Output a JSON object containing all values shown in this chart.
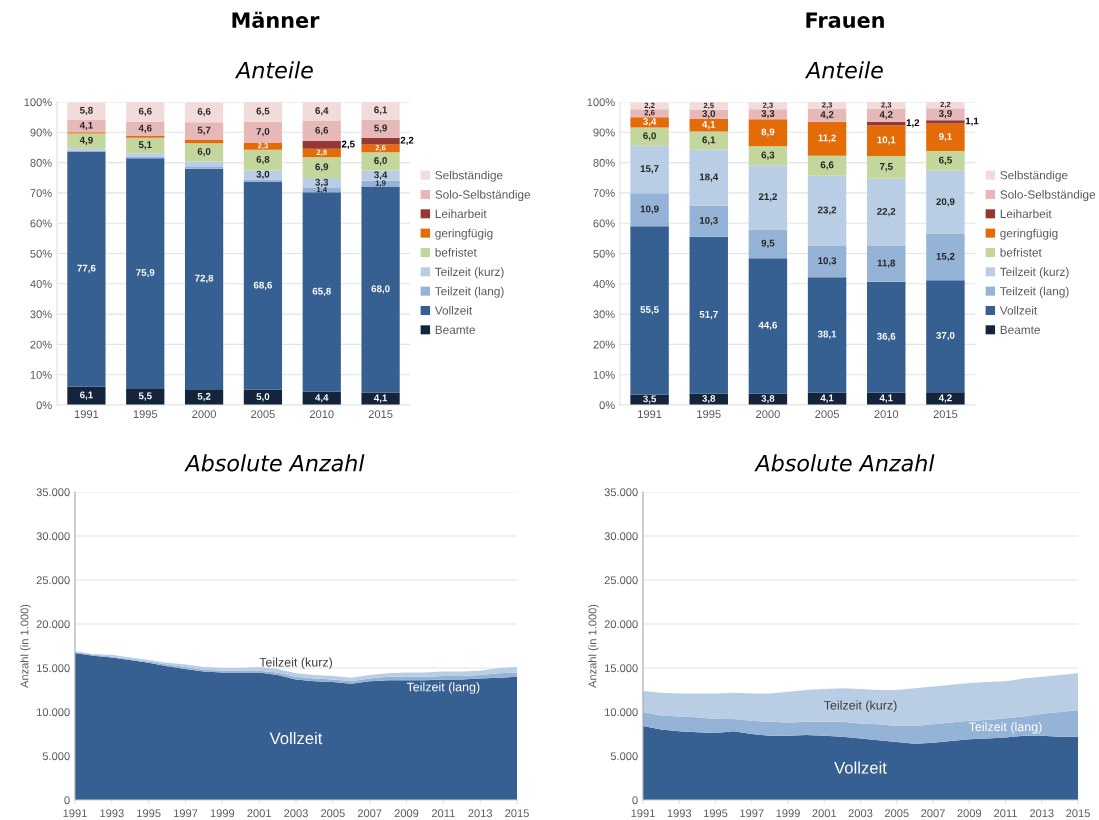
{
  "chart_data": [
    {
      "type": "bar",
      "title": "Männer",
      "subtitle": "Anteile",
      "categories": [
        "1991",
        "1995",
        "2000",
        "2005",
        "2010",
        "2015"
      ],
      "stacked": true,
      "ylim": [
        0,
        100
      ],
      "yticks": [
        {
          "value": 0,
          "label": "0%"
        },
        {
          "value": 10,
          "label": "10%"
        },
        {
          "value": 20,
          "label": "20%"
        },
        {
          "value": 30,
          "label": "30%"
        },
        {
          "value": 40,
          "label": "40%"
        },
        {
          "value": 50,
          "label": "50%"
        },
        {
          "value": 60,
          "label": "60%"
        },
        {
          "value": 70,
          "label": "70%"
        },
        {
          "value": 80,
          "label": "80%"
        },
        {
          "value": 90,
          "label": "90%"
        },
        {
          "value": 100,
          "label": "100%"
        }
      ],
      "grid": "y",
      "legend": "right",
      "series": [
        {
          "name": "Beamte",
          "color": "#14243c",
          "values": [
            6.1,
            5.5,
            5.2,
            5.0,
            4.4,
            4.1
          ],
          "value_labels": [
            "6,1",
            "5,5",
            "5,2",
            "5,0",
            "4,4",
            "4,1"
          ]
        },
        {
          "name": "Vollzeit",
          "color": "#376092",
          "values": [
            77.6,
            75.9,
            72.8,
            68.6,
            65.8,
            68.0
          ],
          "value_labels": [
            "77,6",
            "75,9",
            "72,8",
            "68,6",
            "65,8",
            "68,0"
          ]
        },
        {
          "name": "Teilzeit (lang)",
          "color": "#95b3d7",
          "values": [
            0.3,
            0.5,
            0.8,
            0.8,
            1.4,
            1.9
          ],
          "value_labels": [
            null,
            null,
            null,
            null,
            "1,4",
            "1,9"
          ]
        },
        {
          "name": "Teilzeit (kurz)",
          "color": "#b9cde5",
          "values": [
            0.7,
            1.2,
            1.6,
            3.0,
            3.3,
            3.4
          ],
          "value_labels": [
            null,
            null,
            null,
            "3,0",
            "3,3",
            "3,4"
          ]
        },
        {
          "name": "befristet",
          "color": "#c3d69b",
          "values": [
            4.9,
            5.1,
            6.0,
            6.8,
            6.9,
            6.0
          ],
          "value_labels": [
            "4,9",
            "5,1",
            "6,0",
            "6,8",
            "6,9",
            "6,0"
          ]
        },
        {
          "name": "geringfügig",
          "color": "#e36c09",
          "values": [
            0.4,
            0.6,
            1.2,
            2.3,
            2.8,
            2.6
          ],
          "value_labels": [
            null,
            null,
            null,
            "2,3",
            "2,8",
            "2,6"
          ]
        },
        {
          "name": "Leiharbeit",
          "color": "#953735",
          "values": [
            null,
            null,
            null,
            null,
            2.5,
            2.2
          ],
          "value_labels": [
            null,
            null,
            null,
            null,
            "2,5",
            "2,2"
          ]
        },
        {
          "name": "Solo-Selbständige",
          "color": "#e6b9b8",
          "values": [
            4.1,
            4.6,
            5.7,
            7.0,
            6.6,
            5.9
          ],
          "value_labels": [
            "4,1",
            "4,6",
            "5,7",
            "7,0",
            "6,6",
            "5,9"
          ]
        },
        {
          "name": "Selbständige",
          "color": "#f2dcdb",
          "values": [
            5.8,
            6.6,
            6.6,
            6.5,
            6.4,
            6.1
          ],
          "value_labels": [
            "5,8",
            "6,6",
            "6,6",
            "6,5",
            "6,4",
            "6,1"
          ]
        }
      ]
    },
    {
      "type": "bar",
      "title": "Frauen",
      "subtitle": "Anteile",
      "categories": [
        "1991",
        "1995",
        "2000",
        "2005",
        "2010",
        "2015"
      ],
      "stacked": true,
      "ylim": [
        0,
        100
      ],
      "yticks": [
        {
          "value": 0,
          "label": "0%"
        },
        {
          "value": 10,
          "label": "10%"
        },
        {
          "value": 20,
          "label": "20%"
        },
        {
          "value": 30,
          "label": "30%"
        },
        {
          "value": 40,
          "label": "40%"
        },
        {
          "value": 50,
          "label": "50%"
        },
        {
          "value": 60,
          "label": "60%"
        },
        {
          "value": 70,
          "label": "70%"
        },
        {
          "value": 80,
          "label": "80%"
        },
        {
          "value": 90,
          "label": "90%"
        },
        {
          "value": 100,
          "label": "100%"
        }
      ],
      "grid": "y",
      "legend": "right",
      "series": [
        {
          "name": "Beamte",
          "color": "#14243c",
          "values": [
            3.5,
            3.8,
            3.8,
            4.1,
            4.1,
            4.2
          ],
          "value_labels": [
            "3,5",
            "3,8",
            "3,8",
            "4,1",
            "4,1",
            "4,2"
          ]
        },
        {
          "name": "Vollzeit",
          "color": "#376092",
          "values": [
            55.5,
            51.7,
            44.6,
            38.1,
            36.6,
            37.0
          ],
          "value_labels": [
            "55,5",
            "51,7",
            "44,6",
            "38,1",
            "36,6",
            "37,0"
          ]
        },
        {
          "name": "Teilzeit (lang)",
          "color": "#95b3d7",
          "values": [
            10.9,
            10.3,
            9.5,
            10.3,
            11.8,
            15.2
          ],
          "value_labels": [
            "10,9",
            "10,3",
            "9,5",
            "10,3",
            "11,8",
            "15,2"
          ]
        },
        {
          "name": "Teilzeit (kurz)",
          "color": "#b9cde5",
          "values": [
            15.7,
            18.4,
            21.2,
            23.2,
            22.2,
            20.9
          ],
          "value_labels": [
            "15,7",
            "18,4",
            "21,2",
            "23,2",
            "22,2",
            "20,9"
          ]
        },
        {
          "name": "befristet",
          "color": "#c3d69b",
          "values": [
            6.0,
            6.1,
            6.3,
            6.6,
            7.5,
            6.5
          ],
          "value_labels": [
            "6,0",
            "6,1",
            "6,3",
            "6,6",
            "7,5",
            "6,5"
          ]
        },
        {
          "name": "geringfügig",
          "color": "#e36c09",
          "values": [
            3.4,
            4.1,
            8.9,
            11.2,
            10.1,
            9.1
          ],
          "value_labels": [
            "3,4",
            "4,1",
            "8,9",
            "11,2",
            "10,1",
            "9,1"
          ]
        },
        {
          "name": "Leiharbeit",
          "color": "#953735",
          "values": [
            null,
            null,
            null,
            null,
            1.2,
            1.1
          ],
          "value_labels": [
            null,
            null,
            null,
            null,
            "1,2",
            "1,1"
          ]
        },
        {
          "name": "Solo-Selbständige",
          "color": "#e6b9b8",
          "values": [
            2.6,
            3.0,
            3.3,
            4.2,
            4.2,
            3.9
          ],
          "value_labels": [
            "2,6",
            "3,0",
            "3,3",
            "4,2",
            "4,2",
            "3,9"
          ]
        },
        {
          "name": "Selbständige",
          "color": "#f2dcdb",
          "values": [
            2.2,
            2.5,
            2.3,
            2.3,
            2.3,
            2.2
          ],
          "value_labels": [
            "2,2",
            "2,5",
            "2,3",
            "2,3",
            "2,3",
            "2,2"
          ]
        }
      ]
    },
    {
      "type": "area",
      "title": "Absolute Anzahl",
      "ylabel": "Anzahl (in 1.000)",
      "stacked": true,
      "grid": "y",
      "x": [
        1991,
        1992,
        1993,
        1994,
        1995,
        1996,
        1997,
        1998,
        1999,
        2000,
        2001,
        2002,
        2003,
        2004,
        2005,
        2006,
        2007,
        2008,
        2009,
        2010,
        2011,
        2012,
        2013,
        2014,
        2015
      ],
      "xlim": [
        1991,
        2015
      ],
      "xticks": [
        1991,
        1993,
        1995,
        1997,
        1999,
        2001,
        2003,
        2005,
        2007,
        2009,
        2011,
        2013,
        2015
      ],
      "ylim": [
        0,
        35000
      ],
      "yticks": [
        0,
        {
          "value": 5000,
          "label": "5.000"
        },
        {
          "value": 10000,
          "label": "10.000"
        },
        {
          "value": 15000,
          "label": "15.000"
        },
        {
          "value": 20000,
          "label": "20.000"
        },
        {
          "value": 25000,
          "label": "25.000"
        },
        {
          "value": 30000,
          "label": "30.000"
        },
        {
          "value": 35000,
          "label": "35.000"
        }
      ],
      "series": [
        {
          "name": "Vollzeit",
          "color": "#376092",
          "values": [
            16700,
            16400,
            16200,
            15900,
            15600,
            15200,
            14900,
            14600,
            14500,
            14500,
            14500,
            14200,
            13700,
            13500,
            13400,
            13200,
            13500,
            13600,
            13600,
            13600,
            13700,
            13700,
            13800,
            13900,
            14000
          ]
        },
        {
          "name": "Teilzeit (lang)",
          "color": "#95b3d7",
          "values": [
            100,
            100,
            100,
            100,
            100,
            200,
            200,
            200,
            200,
            200,
            200,
            300,
            300,
            300,
            300,
            300,
            300,
            400,
            400,
            400,
            400,
            400,
            400,
            500,
            500
          ]
        },
        {
          "name": "Teilzeit (kurz)",
          "color": "#b9cde5",
          "values": [
            100,
            100,
            200,
            200,
            200,
            200,
            300,
            300,
            300,
            300,
            400,
            400,
            400,
            400,
            400,
            400,
            400,
            400,
            500,
            500,
            500,
            500,
            500,
            600,
            600
          ]
        }
      ]
    },
    {
      "type": "area",
      "title": "Absolute Anzahl",
      "ylabel": "Anzahl (in 1.000)",
      "stacked": true,
      "grid": "y",
      "x": [
        1991,
        1992,
        1993,
        1994,
        1995,
        1996,
        1997,
        1998,
        1999,
        2000,
        2001,
        2002,
        2003,
        2004,
        2005,
        2006,
        2007,
        2008,
        2009,
        2010,
        2011,
        2012,
        2013,
        2014,
        2015
      ],
      "xlim": [
        1991,
        2015
      ],
      "xticks": [
        1991,
        1993,
        1995,
        1997,
        1999,
        2001,
        2003,
        2005,
        2007,
        2009,
        2011,
        2013,
        2015
      ],
      "ylim": [
        0,
        35000
      ],
      "yticks": [
        0,
        {
          "value": 5000,
          "label": "5.000"
        },
        {
          "value": 10000,
          "label": "10.000"
        },
        {
          "value": 15000,
          "label": "15.000"
        },
        {
          "value": 20000,
          "label": "20.000"
        },
        {
          "value": 25000,
          "label": "25.000"
        },
        {
          "value": 30000,
          "label": "30.000"
        },
        {
          "value": 35000,
          "label": "35.000"
        }
      ],
      "series": [
        {
          "name": "Vollzeit",
          "color": "#376092",
          "values": [
            8400,
            8000,
            7800,
            7700,
            7600,
            7800,
            7500,
            7300,
            7300,
            7400,
            7300,
            7200,
            7000,
            6800,
            6600,
            6400,
            6500,
            6700,
            6900,
            7000,
            7100,
            7300,
            7300,
            7200,
            7200
          ]
        },
        {
          "name": "Teilzeit (lang)",
          "color": "#95b3d7",
          "values": [
            1600,
            1600,
            1700,
            1700,
            1600,
            1400,
            1500,
            1600,
            1500,
            1500,
            1600,
            1700,
            1700,
            1800,
            1800,
            2000,
            2100,
            2100,
            2100,
            2100,
            2200,
            2200,
            2500,
            2800,
            3000
          ]
        },
        {
          "name": "Teilzeit (kurz)",
          "color": "#b9cde5",
          "values": [
            2400,
            2600,
            2600,
            2700,
            2900,
            3000,
            3100,
            3200,
            3500,
            3600,
            3700,
            3800,
            3900,
            3900,
            4100,
            4300,
            4300,
            4300,
            4300,
            4300,
            4200,
            4300,
            4200,
            4200,
            4200
          ]
        }
      ]
    }
  ]
}
